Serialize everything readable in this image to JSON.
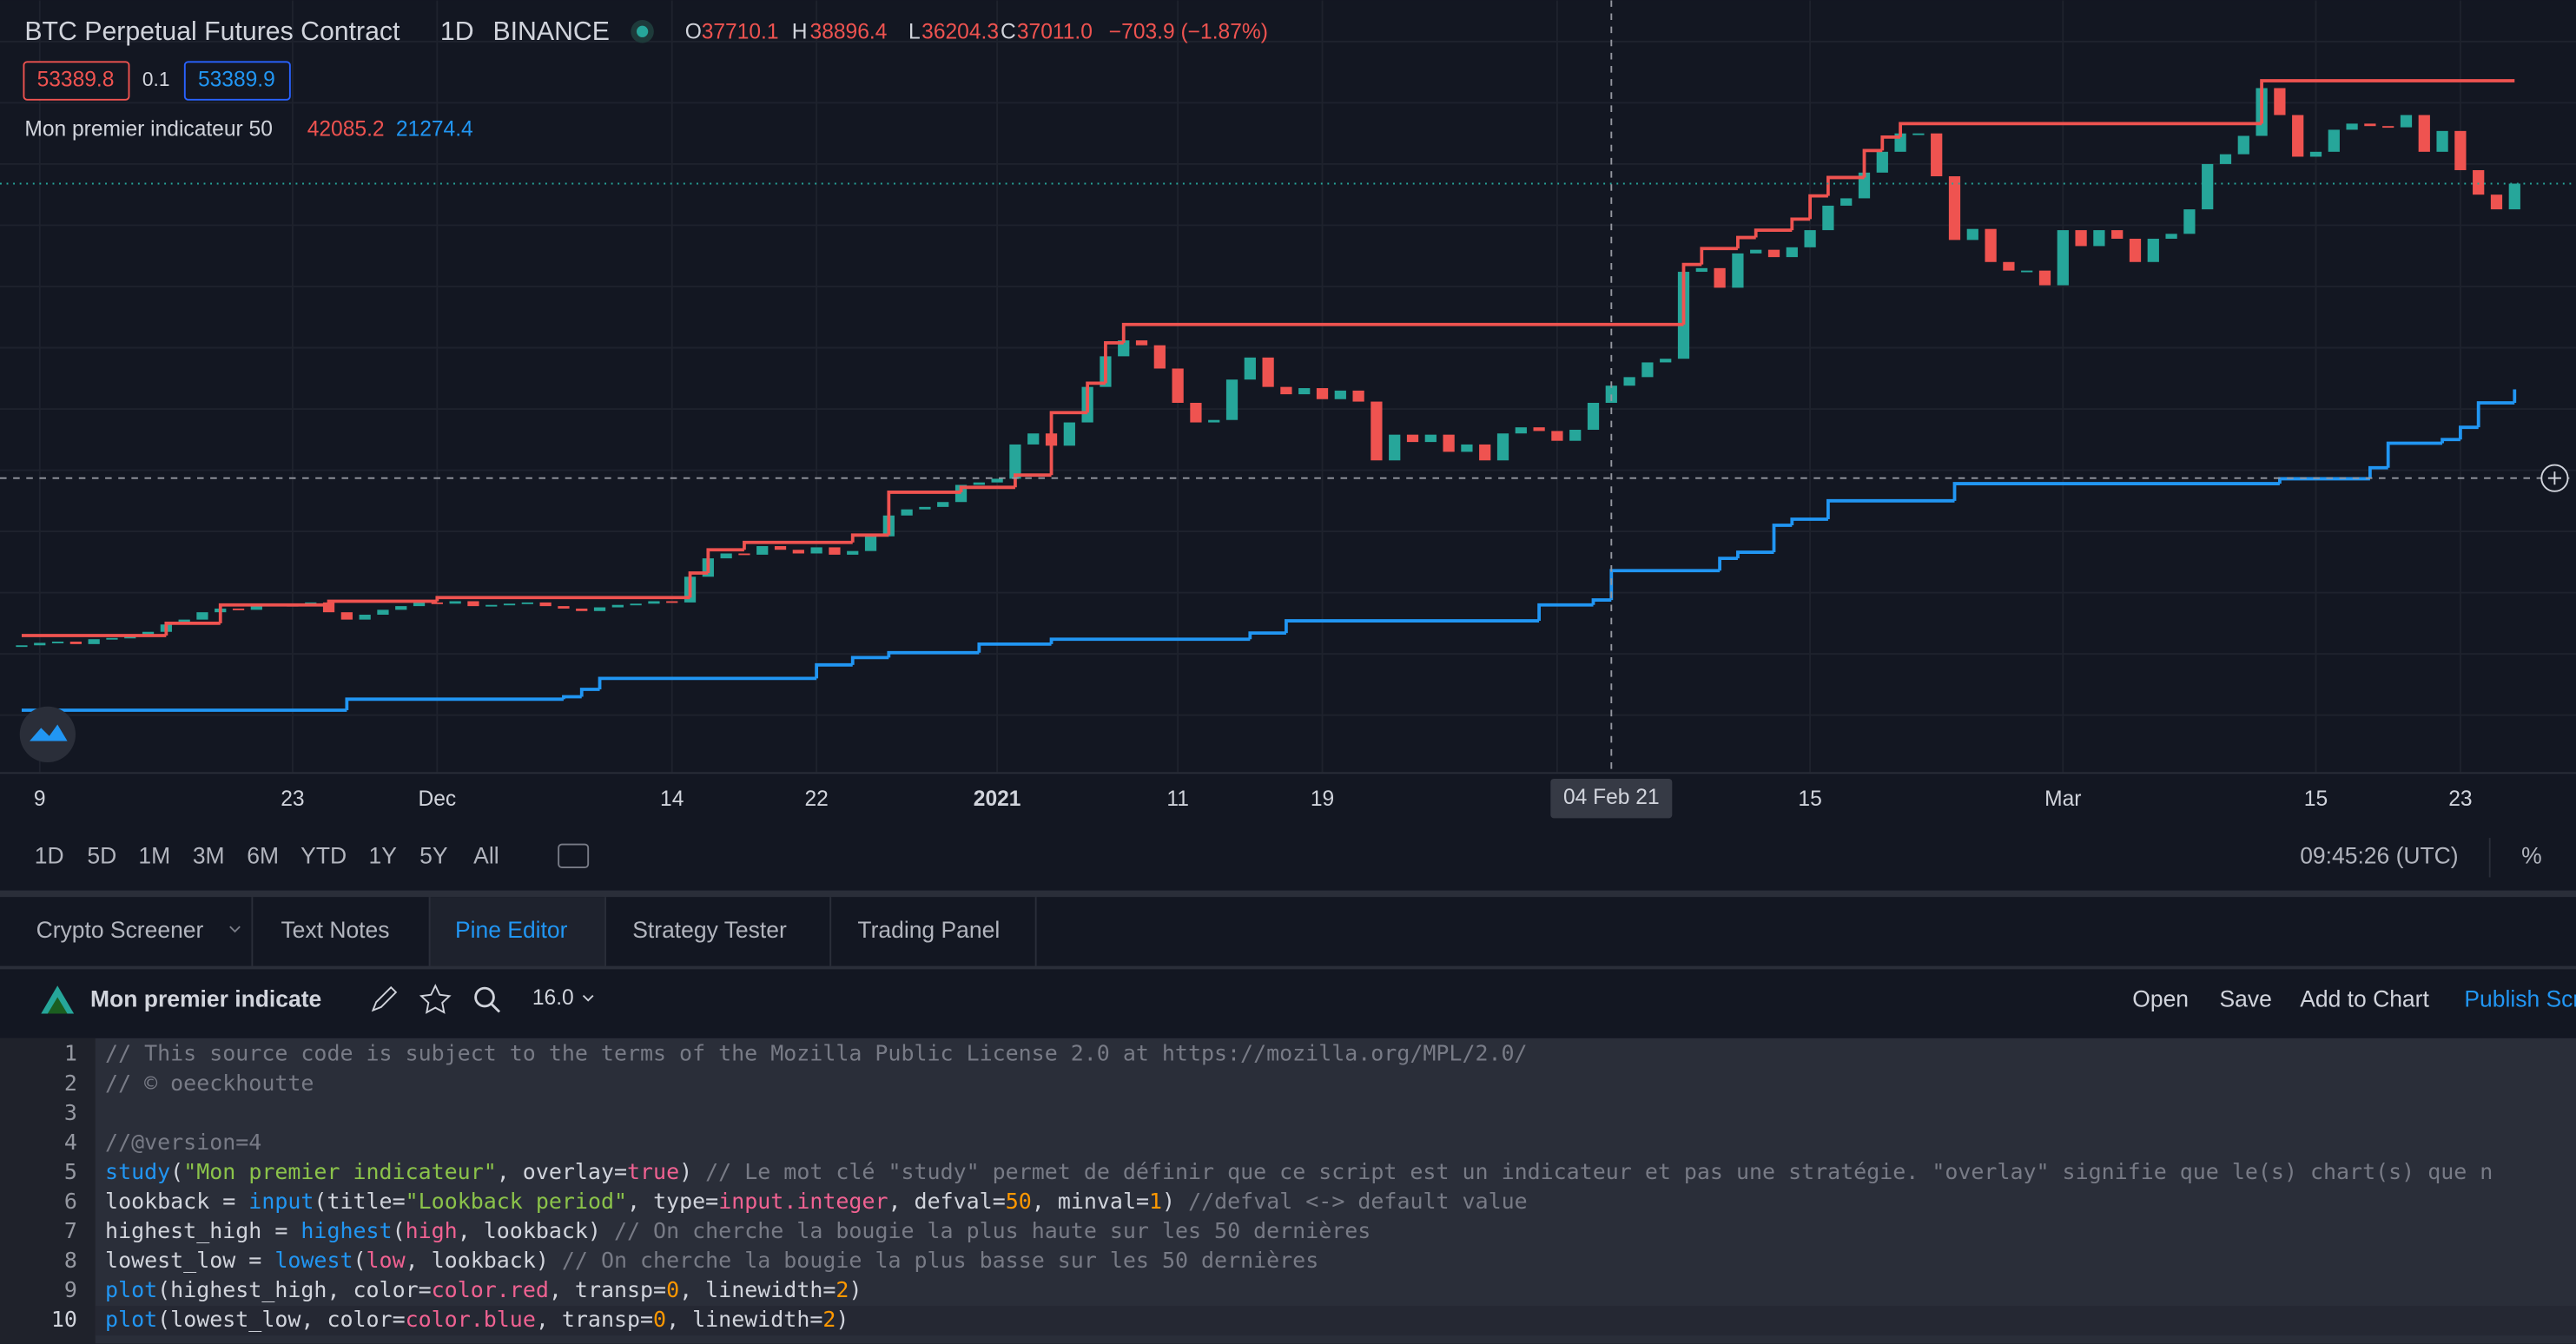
{
  "header": {
    "symbol": "BTC Perpetual Futures Contract",
    "interval": "1D",
    "exchange": "BINANCE",
    "ohlc": [
      {
        "label": "O",
        "value": "37710.1"
      },
      {
        "label": "H",
        "value": "38896.4"
      },
      {
        "label": "L",
        "value": "36204.3"
      },
      {
        "label": "C",
        "value": "37011.0"
      }
    ],
    "change": "−703.9 (−1.87%)"
  },
  "quote": {
    "bid": "53389.8",
    "spread": "0.1",
    "ask": "53389.9"
  },
  "indicator": {
    "name": "Mon premier indicateur 50",
    "values": [
      "42085.2",
      "21274.4"
    ]
  },
  "chart_data": {
    "type": "candlestick",
    "up_color": "#26a69a",
    "down_color": "#ef5350",
    "values": [
      15700,
      15900,
      16000,
      15800,
      16200,
      16300,
      16400,
      16800,
      17400,
      17800,
      18400,
      18700,
      18600,
      19100,
      19000,
      18900,
      19200,
      18400,
      17800,
      18200,
      18600,
      18900,
      19200,
      19100,
      19300,
      18900,
      19000,
      19100,
      19200,
      18900,
      18700,
      18500,
      18800,
      19000,
      19100,
      19300,
      19200,
      21300,
      22800,
      23200,
      23100,
      23800,
      23500,
      23200,
      23700,
      23100,
      23400,
      24600,
      26300,
      26800,
      27000,
      27400,
      28800,
      29000,
      29300,
      32100,
      33000,
      32000,
      33900,
      36800,
      39300,
      40600,
      40200,
      38300,
      35500,
      33900,
      34100,
      37400,
      39200,
      36800,
      36200,
      36700,
      35800,
      36500,
      35600,
      30800,
      32900,
      32300,
      32900,
      31500,
      32100,
      30800,
      33000,
      33500,
      33200,
      32400,
      33300,
      35500,
      36900,
      37600,
      38800,
      39100,
      46200,
      46500,
      44900,
      47700,
      48000,
      47400,
      48200,
      49600,
      51600,
      52200,
      54300,
      56000,
      57500,
      57500,
      54000,
      48800,
      49700,
      47000,
      46300,
      46300,
      45100,
      49600,
      48300,
      49600,
      48900,
      47000,
      48900,
      49300,
      51300,
      55000,
      55800,
      57300,
      61200,
      59000,
      55600,
      56000,
      57800,
      58300,
      58100,
      58000,
      59000,
      56000,
      57700,
      54500,
      52500,
      51300,
      53400
    ],
    "lines": [
      {
        "color": "#ef5350",
        "x": [
          0,
          8,
          11,
          17,
          23,
          37,
          38,
          40,
          46,
          48,
          52,
          55,
          57,
          59,
          60,
          61,
          92,
          93,
          95,
          96,
          98,
          99,
          100,
          102,
          103,
          104,
          124,
          138
        ],
        "values": [
          16500,
          17500,
          19000,
          19300,
          19600,
          21600,
          23500,
          24100,
          24700,
          28200,
          28600,
          29600,
          34700,
          37100,
          40400,
          41900,
          46800,
          48100,
          49000,
          49600,
          50500,
          52400,
          53900,
          56100,
          57200,
          58300,
          61800,
          61800
        ]
      },
      {
        "color": "#2196f3",
        "x": [
          0,
          18,
          30,
          31,
          32,
          44,
          46,
          48,
          53,
          57,
          68,
          70,
          84,
          87,
          88,
          94,
          95,
          97,
          98,
          100,
          107,
          125,
          130,
          131,
          134,
          135,
          136,
          138
        ],
        "values": [
          10400,
          11300,
          11500,
          12100,
          13000,
          14100,
          14700,
          15100,
          15800,
          16200,
          16700,
          17700,
          19000,
          19400,
          21800,
          22800,
          23300,
          25500,
          26000,
          27500,
          28900,
          29300,
          30200,
          32200,
          32500,
          33500,
          35500,
          36600
        ]
      }
    ],
    "xlim": [
      -1.2,
      141.4
    ],
    "ylim": [
      5340,
      68370
    ],
    "yticks": [
      10000,
      15000,
      20000,
      25000,
      30000,
      35000,
      40000,
      45000,
      50000,
      55000,
      60000,
      65000
    ],
    "xticks": [
      {
        "value": 1,
        "label": "9"
      },
      {
        "value": 15,
        "label": "23"
      },
      {
        "value": 23,
        "label": "Dec"
      },
      {
        "value": 36,
        "label": "14"
      },
      {
        "value": 44,
        "label": "22"
      },
      {
        "value": 54,
        "label": "2021"
      },
      {
        "value": 64,
        "label": "11"
      },
      {
        "value": 72,
        "label": "19"
      },
      {
        "value": 85,
        "label": "F"
      },
      {
        "value": 99,
        "label": "15"
      },
      {
        "value": 113,
        "label": "Mar"
      },
      {
        "value": 127,
        "label": "15"
      },
      {
        "value": 135,
        "label": "23"
      }
    ],
    "grid": true,
    "crosshair": {
      "x": 88,
      "y": 29350,
      "label": "04 Feb 21"
    }
  },
  "timeframes": [
    "1D",
    "5D",
    "1M",
    "3M",
    "6M",
    "YTD",
    "1Y",
    "5Y",
    "All"
  ],
  "clock": "09:45:26 (UTC)",
  "percent": "%",
  "tabs": [
    "Crypto Screener",
    "Text Notes",
    "Pine Editor",
    "Strategy Tester",
    "Trading Panel"
  ],
  "editor": {
    "script_name": "Mon premier indicate",
    "version": "16.0",
    "actions": [
      "Open",
      "Save",
      "Add to Chart",
      "Publish Script"
    ],
    "lines": [
      "// This source code is subject to the terms of the Mozilla Public License 2.0 at https://mozilla.org/MPL/2.0/",
      "// © oeeckhoutte",
      "",
      "//@version=4",
      "study(\"Mon premier indicateur\", overlay=true) // Le mot clé \"study\" permet de définir que ce script est un indicateur et pas une stratégie. \"overlay\" signifie que le(s) chart(s) que n",
      "lookback = input(title=\"Lookback period\", type=input.integer, defval=50, minval=1) //defval <-> default value",
      "highest_high = highest(high, lookback) // On cherche la bougie la plus haute sur les 50 dernières",
      "lowest_low = lowest(low, lookback) // On cherche la bougie la plus basse sur les 50 dernières",
      "plot(highest_high, color=color.red, transp=0, linewidth=2)",
      "plot(lowest_low, color=color.blue, transp=0, linewidth=2)"
    ]
  }
}
